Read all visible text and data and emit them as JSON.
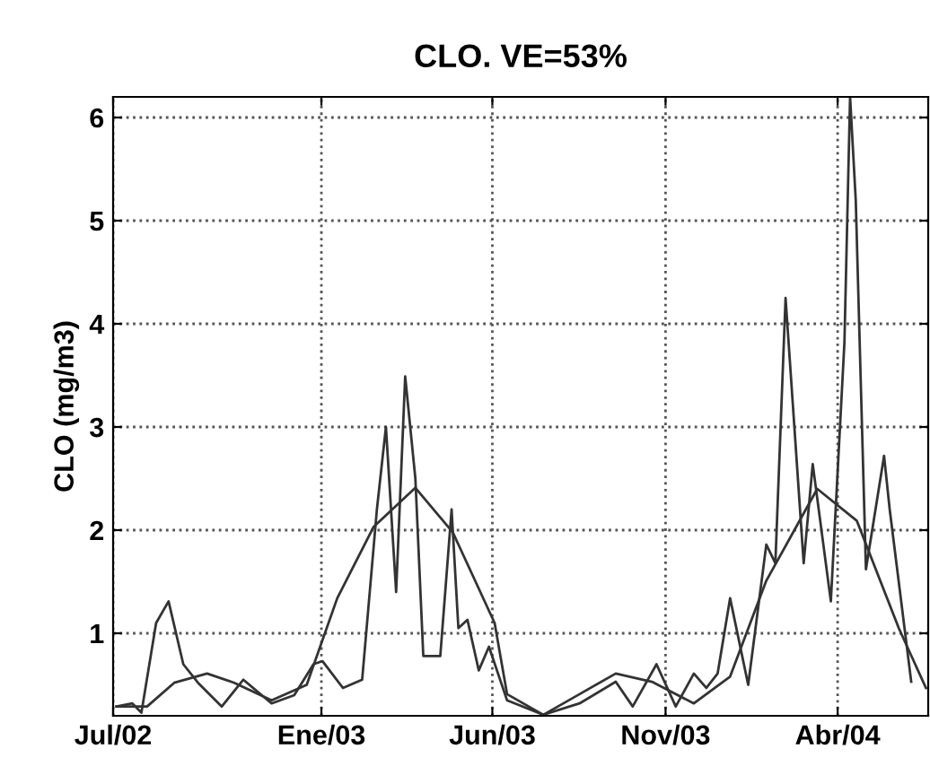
{
  "chart_data": {
    "type": "line",
    "title": "CLO. VE=53%",
    "ylabel": "CLO (mg/m3)",
    "xlim": [
      "2002-07-01",
      "2004-06-20"
    ],
    "ylim": [
      0.2,
      6.2
    ],
    "xticks": [
      {
        "value": "2002-07-01",
        "label": "Jul/02"
      },
      {
        "value": "2003-01-01",
        "label": "Ene/03"
      },
      {
        "value": "2003-06-01",
        "label": "Jun/03"
      },
      {
        "value": "2003-11-01",
        "label": "Nov/03"
      },
      {
        "value": "2004-04-01",
        "label": "Abr/04"
      }
    ],
    "yticks": [
      1,
      2,
      3,
      4,
      5,
      6
    ],
    "grid": true,
    "marker": "none",
    "line_style": "solid",
    "series": [
      {
        "color": "#333333",
        "x": [
          "2002-07-04",
          "2002-07-18",
          "2002-07-26",
          "2002-08-08",
          "2002-08-19",
          "2002-09-01",
          "2002-09-14",
          "2002-10-05",
          "2002-10-24",
          "2002-11-18",
          "2002-12-08",
          "2002-12-25",
          "2003-01-02",
          "2003-01-20",
          "2003-02-06",
          "2003-02-19",
          "2003-02-27",
          "2003-03-08",
          "2003-03-16",
          "2003-03-25",
          "2003-04-01",
          "2003-04-16",
          "2003-04-26",
          "2003-05-02",
          "2003-05-10",
          "2003-05-20",
          "2003-05-29",
          "2003-06-14",
          "2003-07-16",
          "2003-08-17",
          "2003-09-18",
          "2003-10-03",
          "2003-10-24",
          "2003-11-10",
          "2003-11-26",
          "2003-12-07",
          "2003-12-17",
          "2003-12-28",
          "2004-01-13",
          "2004-01-29",
          "2004-02-06",
          "2004-02-15",
          "2004-03-02",
          "2004-03-10",
          "2004-03-26",
          "2004-04-07",
          "2004-04-12",
          "2004-04-17",
          "2004-04-26",
          "2004-05-12",
          "2004-05-17",
          "2004-06-05"
        ],
        "values": [
          0.29,
          0.32,
          0.23,
          1.1,
          1.31,
          0.7,
          0.52,
          0.29,
          0.55,
          0.32,
          0.4,
          0.7,
          0.73,
          0.47,
          0.55,
          2.2,
          3.0,
          1.4,
          3.49,
          2.5,
          0.78,
          0.78,
          2.2,
          1.05,
          1.13,
          0.64,
          0.87,
          0.35,
          0.21,
          0.32,
          0.53,
          0.29,
          0.7,
          0.29,
          0.61,
          0.47,
          0.61,
          1.34,
          0.5,
          1.86,
          1.68,
          4.25,
          1.68,
          2.64,
          1.31,
          3.82,
          6.2,
          5.2,
          1.62,
          2.72,
          2.2,
          0.53
        ]
      },
      {
        "color": "#333333",
        "x": [
          "2002-07-04",
          "2002-07-31",
          "2002-08-24",
          "2002-09-22",
          "2002-10-16",
          "2002-11-18",
          "2002-12-19",
          "2003-01-15",
          "2003-02-16",
          "2003-03-25",
          "2003-04-27",
          "2003-06-03",
          "2003-06-14",
          "2003-07-16",
          "2003-08-17",
          "2003-09-18",
          "2003-10-20",
          "2003-11-26",
          "2003-12-28",
          "2004-01-29",
          "2004-03-14",
          "2004-04-18",
          "2004-05-25",
          "2004-06-18"
        ],
        "values": [
          0.29,
          0.29,
          0.52,
          0.61,
          0.52,
          0.35,
          0.5,
          1.34,
          2.03,
          2.41,
          1.98,
          1.1,
          0.41,
          0.21,
          0.41,
          0.61,
          0.53,
          0.32,
          0.58,
          1.51,
          2.4,
          2.09,
          1.05,
          0.47
        ]
      }
    ]
  }
}
